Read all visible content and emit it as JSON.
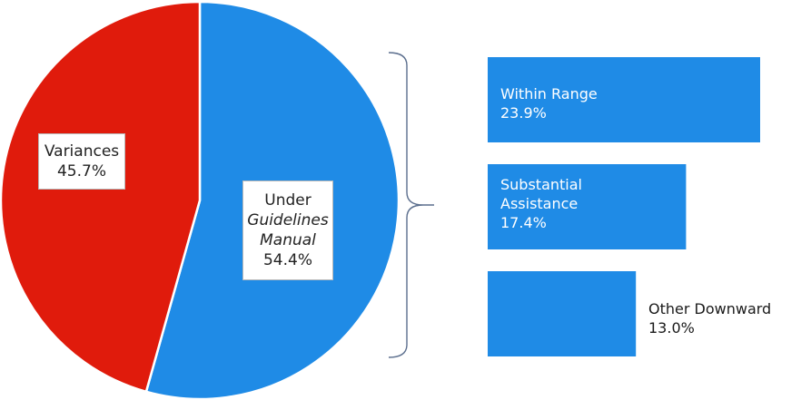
{
  "chart_data": [
    {
      "type": "pie",
      "slices": [
        {
          "label_lines": [
            "Variances"
          ],
          "value": 45.7,
          "value_label": "45.7%",
          "color": "#e01b0c"
        },
        {
          "label_lines": [
            "Under",
            "Guidelines",
            "Manual"
          ],
          "italic_lines": [
            1,
            2
          ],
          "value": 54.4,
          "value_label": "54.4%",
          "color": "#1f8be6"
        }
      ]
    },
    {
      "type": "bar",
      "orientation": "horizontal",
      "color": "#1f8be6",
      "bars": [
        {
          "label_lines": [
            "Within Range"
          ],
          "value": 23.9,
          "value_label": "23.9%",
          "label_position": "inside"
        },
        {
          "label_lines": [
            "Substantial",
            "Assistance"
          ],
          "value": 17.4,
          "value_label": "17.4%",
          "label_position": "inside"
        },
        {
          "label_lines": [
            "Other Downward"
          ],
          "value": 13.0,
          "value_label": "13.0%",
          "label_position": "outside"
        }
      ]
    }
  ]
}
